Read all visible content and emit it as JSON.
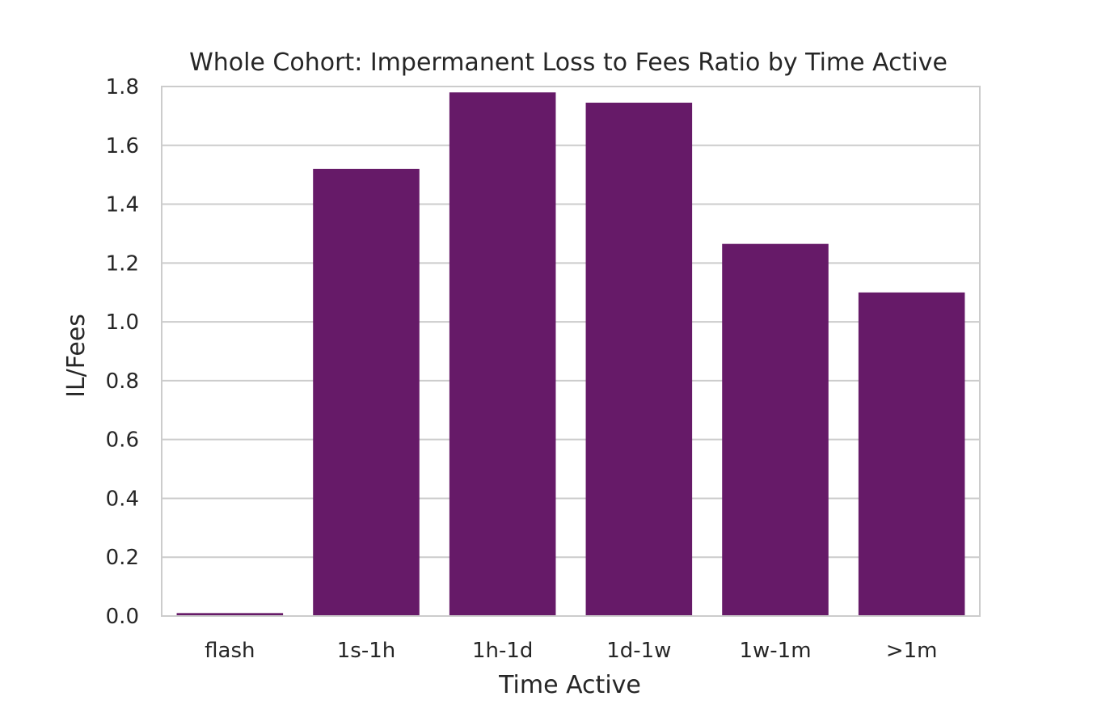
{
  "chart_data": {
    "type": "bar",
    "title": "Whole Cohort: Impermanent Loss to Fees Ratio by Time Active",
    "xlabel": "Time Active",
    "ylabel": "IL/Fees",
    "categories": [
      "flash",
      "1s-1h",
      "1h-1d",
      "1d-1w",
      "1w-1m",
      ">1m"
    ],
    "values": [
      0.01,
      1.52,
      1.78,
      1.745,
      1.265,
      1.1
    ],
    "ylim": [
      0,
      1.8
    ],
    "yticks": [
      "0.0",
      "0.2",
      "0.4",
      "0.6",
      "0.8",
      "1.0",
      "1.2",
      "1.4",
      "1.6",
      "1.8"
    ],
    "grid": "horizontal",
    "bar_color": "#661a68",
    "grid_color": "#cccccc",
    "frame_color": "#cccccc"
  }
}
